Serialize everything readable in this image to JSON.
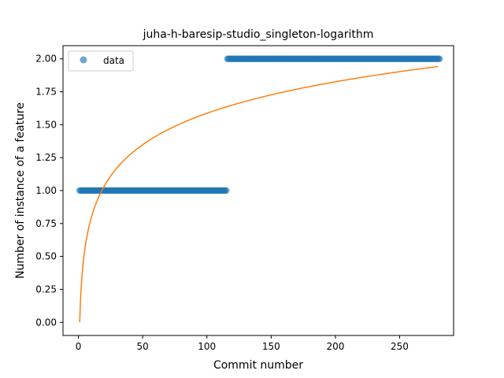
{
  "chart_data": {
    "type": "scatter",
    "title": "juha-h-baresip-studio_singleton-logarithm",
    "xlabel": "Commit number",
    "ylabel": "Number of instance of a feature",
    "xlim": [
      -12,
      292
    ],
    "ylim": [
      -0.1,
      2.1
    ],
    "x_ticks": [
      0,
      50,
      100,
      150,
      200,
      250
    ],
    "x_tick_labels": [
      "0",
      "50",
      "100",
      "150",
      "200",
      "250"
    ],
    "y_ticks": [
      0.0,
      0.25,
      0.5,
      0.75,
      1.0,
      1.25,
      1.5,
      1.75,
      2.0
    ],
    "y_tick_labels": [
      "0.00",
      "0.25",
      "0.50",
      "0.75",
      "1.00",
      "1.25",
      "1.50",
      "1.75",
      "2.00"
    ],
    "grid": false,
    "legend_position": "top-left",
    "series": [
      {
        "name": "data",
        "kind": "scatter",
        "color": "#1f77b4",
        "segments": [
          {
            "x_start": 1,
            "x_end": 115,
            "y": 1
          },
          {
            "x_start": 116,
            "x_end": 281,
            "y": 2
          }
        ]
      },
      {
        "kind": "line",
        "color": "#ff7f0e",
        "model": "logarithmic fit y = a * ln(x)",
        "a": 0.3446,
        "x_start": 1,
        "x_end": 280
      }
    ]
  }
}
